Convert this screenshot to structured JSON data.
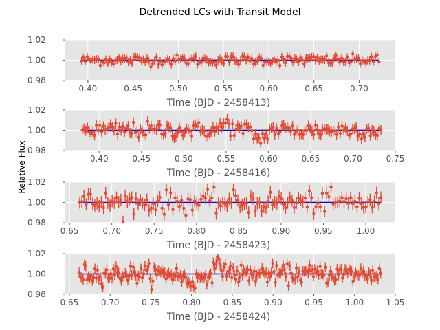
{
  "chart_data": {
    "type": "scatter",
    "title": "Detrended LCs with Transit Model",
    "ylabel": "Relative Flux",
    "colors": {
      "points": "#E24A33",
      "model": "#0000CC",
      "panel_bg": "#E5E5E5",
      "grid": "#FFFFFF"
    },
    "grid": true,
    "panels": [
      {
        "xlabel": "Time (BJD - 2458413)",
        "xlim": [
          0.375,
          0.74
        ],
        "ylim": [
          0.98,
          1.02
        ],
        "xticks": [
          0.4,
          0.45,
          0.5,
          0.55,
          0.6,
          0.65,
          0.7
        ],
        "xtick_labels": [
          "0.40",
          "0.45",
          "0.50",
          "0.55",
          "0.60",
          "0.65",
          "0.70"
        ],
        "yticks": [
          0.98,
          1.0,
          1.02
        ],
        "ytick_labels": [
          "0.98",
          "1.00",
          "1.02"
        ],
        "data_x_range": [
          0.393,
          0.722
        ],
        "model_flux": 1.0,
        "scatter_std": 0.0025,
        "errorbar": 0.004,
        "n_points": 160,
        "dips": []
      },
      {
        "xlabel": "Time (BJD - 2458416)",
        "xlim": [
          0.36,
          0.75
        ],
        "ylim": [
          0.98,
          1.02
        ],
        "xticks": [
          0.4,
          0.45,
          0.5,
          0.55,
          0.6,
          0.65,
          0.7,
          0.75
        ],
        "xtick_labels": [
          "0.40",
          "0.45",
          "0.50",
          "0.55",
          "0.60",
          "0.65",
          "0.70",
          "0.75"
        ],
        "yticks": [
          0.98,
          1.0,
          1.02
        ],
        "ytick_labels": [
          "0.98",
          "1.00",
          "1.02"
        ],
        "data_x_range": [
          0.38,
          0.733
        ],
        "model_flux": 1.0,
        "scatter_std": 0.004,
        "errorbar": 0.005,
        "n_points": 170,
        "dips": [
          {
            "center": 0.59,
            "half_width": 0.012,
            "depth": 0.01
          },
          {
            "center": 0.55,
            "half_width": 0.01,
            "depth": -0.008
          }
        ]
      },
      {
        "xlabel": "Time (BJD - 2458423)",
        "xlim": [
          0.645,
          1.035
        ],
        "ylim": [
          0.98,
          1.02
        ],
        "xticks": [
          0.65,
          0.7,
          0.75,
          0.8,
          0.85,
          0.9,
          0.95,
          1.0
        ],
        "xtick_labels": [
          "0.65",
          "0.70",
          "0.75",
          "0.80",
          "0.85",
          "0.90",
          "0.95",
          "1.00"
        ],
        "yticks": [
          0.98,
          1.0,
          1.02
        ],
        "ytick_labels": [
          "0.98",
          "1.00",
          "1.02"
        ],
        "data_x_range": [
          0.662,
          1.018
        ],
        "model_flux": 1.0,
        "scatter_std": 0.0055,
        "errorbar": 0.006,
        "n_points": 140,
        "dips": []
      },
      {
        "xlabel": "Time (BJD - 2458424)",
        "xlim": [
          0.645,
          1.05
        ],
        "ylim": [
          0.98,
          1.02
        ],
        "xticks": [
          0.65,
          0.7,
          0.75,
          0.8,
          0.85,
          0.9,
          0.95,
          1.0,
          1.05
        ],
        "xtick_labels": [
          "0.65",
          "0.70",
          "0.75",
          "0.80",
          "0.85",
          "0.90",
          "0.95",
          "1.00",
          "1.05"
        ],
        "yticks": [
          0.98,
          1.0,
          1.02
        ],
        "ytick_labels": [
          "0.98",
          "1.00",
          "1.02"
        ],
        "data_x_range": [
          0.662,
          1.032
        ],
        "model_flux": 1.0,
        "scatter_std": 0.0045,
        "errorbar": 0.005,
        "n_points": 230,
        "dips": [
          {
            "center": 0.8,
            "half_width": 0.02,
            "depth": 0.008
          },
          {
            "center": 0.835,
            "half_width": 0.015,
            "depth": -0.009
          }
        ]
      }
    ]
  }
}
